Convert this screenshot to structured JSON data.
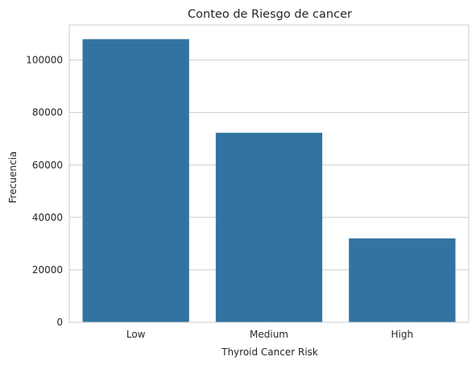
{
  "chart_data": {
    "type": "bar",
    "title": "Conteo de Riesgo de cancer",
    "xlabel": "Thyroid Cancer Risk",
    "ylabel": "Frecuencia",
    "categories": [
      "Low",
      "Medium",
      "High"
    ],
    "values": [
      108000,
      72300,
      32000
    ],
    "ylim": [
      0,
      113400
    ],
    "yticks": [
      0,
      20000,
      40000,
      60000,
      80000,
      100000
    ],
    "grid": "horizontal",
    "bar_color": "#3274a1",
    "grid_color": "#cccccc"
  }
}
